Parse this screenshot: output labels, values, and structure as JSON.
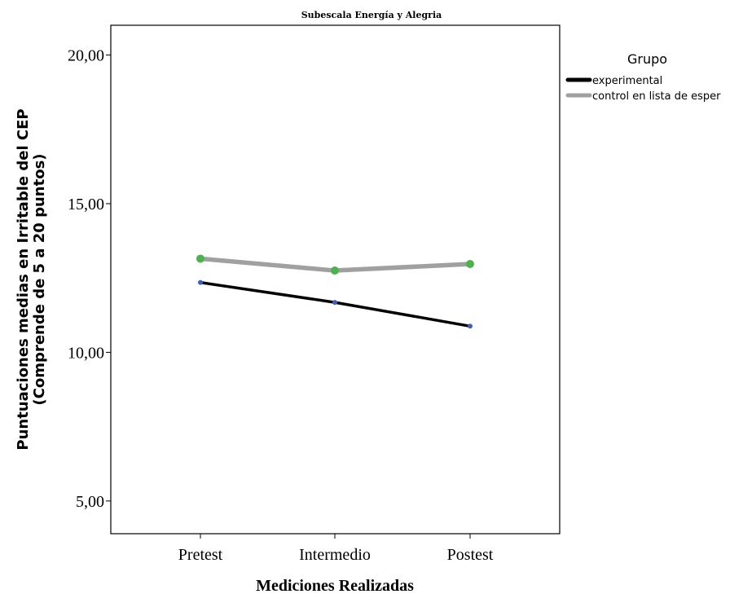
{
  "chart_data": {
    "type": "line",
    "title": "Subescala Energía y Alegria",
    "xlabel": "Mediciones Realizadas",
    "ylabel_line1": "Puntuaciones medias en Irritable del CEP",
    "ylabel_line2": "(Comprende de 5 a 20 puntos)",
    "categories": [
      "Pretest",
      "Intermedio",
      "Postest"
    ],
    "ylim": [
      3.9,
      21.0
    ],
    "yticks": [
      5,
      10,
      15,
      20
    ],
    "ytick_labels": [
      "5,00",
      "10,00",
      "15,00",
      "20,00"
    ],
    "grid": false,
    "legend": {
      "title": "Grupo",
      "placement": "right",
      "entries": [
        "experimental",
        "control en lista de esper"
      ]
    },
    "series": [
      {
        "name": "experimental",
        "values": [
          12.35,
          11.68,
          10.88
        ],
        "line_color": "#000000",
        "marker_color": "#3f5fb8"
      },
      {
        "name": "control en lista de esper",
        "values": [
          13.15,
          12.75,
          12.97
        ],
        "line_color": "#a0a0a0",
        "marker_color": "#4cb34c"
      }
    ]
  }
}
